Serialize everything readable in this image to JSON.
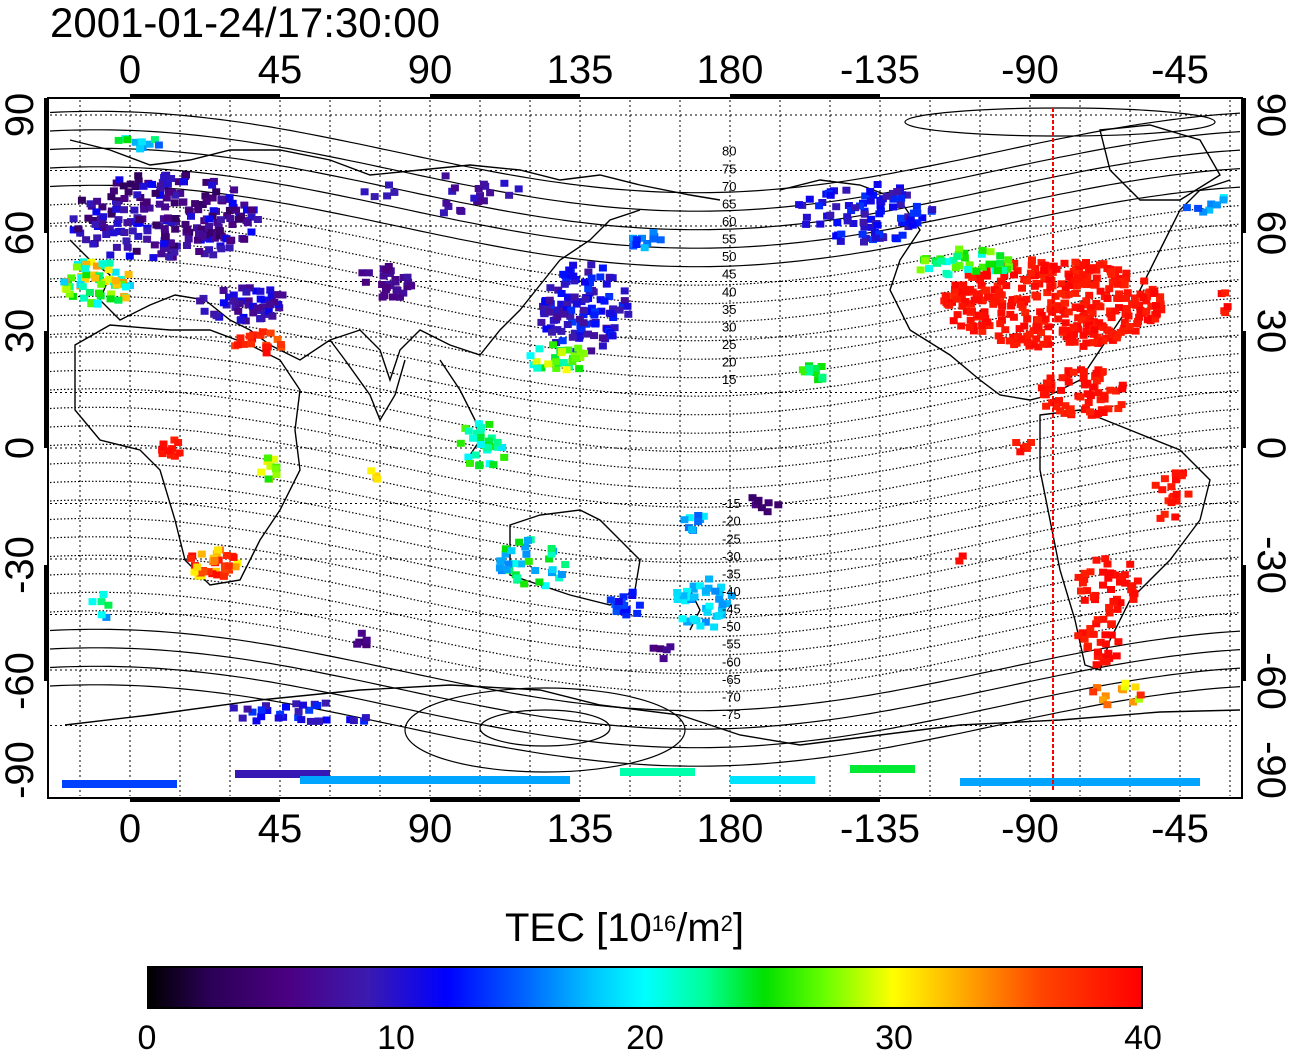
{
  "timestamp": "2001-01-24/17:30:00",
  "map": {
    "top_lon_labels": [
      "0",
      "45",
      "90",
      "135",
      "180",
      "-135",
      "-90",
      "-45"
    ],
    "bottom_lon_labels": [
      "0",
      "45",
      "90",
      "135",
      "180",
      "-135",
      "-90",
      "-45"
    ],
    "left_lat_labels": [
      "90",
      "60",
      "30",
      "0",
      "-30",
      "-60",
      "-90"
    ],
    "right_lat_labels": [
      "90",
      "60",
      "30",
      "0",
      "-30",
      "-60",
      "-90"
    ],
    "contour_labels": [
      "80",
      "75",
      "70",
      "65",
      "60",
      "55",
      "50",
      "45",
      "40",
      "35",
      "30",
      "25",
      "20",
      "15",
      "-15",
      "-20",
      "-25",
      "-30",
      "-35",
      "-40",
      "-45",
      "-50",
      "-55",
      "-60",
      "-65",
      "-70",
      "-75"
    ],
    "dateline_longitude": "-83",
    "colors": {
      "dateline": "#ff0000",
      "grid": "#000000"
    }
  },
  "colorbar": {
    "title_prefix": "TEC  [10",
    "title_exp1": "16",
    "title_mid": "/m",
    "title_exp2": "2",
    "title_suffix": "]",
    "ticks": [
      "0",
      "10",
      "20",
      "30",
      "40"
    ],
    "range": [
      0,
      40
    ]
  }
}
